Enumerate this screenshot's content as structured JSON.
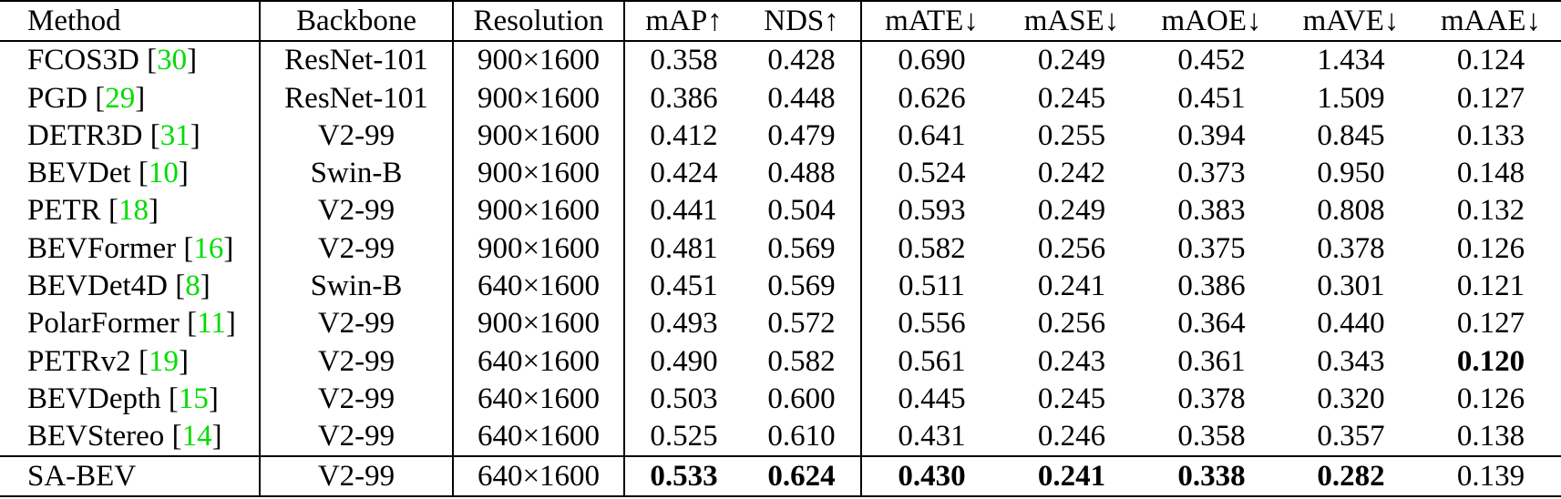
{
  "table": {
    "citation_color": "#00DC00",
    "columns": [
      {
        "id": "method",
        "label": "Method"
      },
      {
        "id": "backbone",
        "label": "Backbone"
      },
      {
        "id": "resolution",
        "label": "Resolution"
      },
      {
        "id": "map",
        "label": "mAP↑"
      },
      {
        "id": "nds",
        "label": "NDS↑"
      },
      {
        "id": "mate",
        "label": "mATE↓"
      },
      {
        "id": "mase",
        "label": "mASE↓"
      },
      {
        "id": "maoe",
        "label": "mAOE↓"
      },
      {
        "id": "mave",
        "label": "mAVE↓"
      },
      {
        "id": "maae",
        "label": "mAAE↓"
      }
    ],
    "rows": [
      {
        "method": "FCOS3D",
        "cite": "30",
        "backbone": "ResNet-101",
        "resolution": "900×1600",
        "metrics": [
          "0.358",
          "0.428",
          "0.690",
          "0.249",
          "0.452",
          "1.434",
          "0.124"
        ],
        "bold": [],
        "separator_above": false
      },
      {
        "method": "PGD",
        "cite": "29",
        "backbone": "ResNet-101",
        "resolution": "900×1600",
        "metrics": [
          "0.386",
          "0.448",
          "0.626",
          "0.245",
          "0.451",
          "1.509",
          "0.127"
        ],
        "bold": [],
        "separator_above": false
      },
      {
        "method": "DETR3D",
        "cite": "31",
        "backbone": "V2-99",
        "resolution": "900×1600",
        "metrics": [
          "0.412",
          "0.479",
          "0.641",
          "0.255",
          "0.394",
          "0.845",
          "0.133"
        ],
        "bold": [],
        "separator_above": false
      },
      {
        "method": "BEVDet",
        "cite": "10",
        "backbone": "Swin-B",
        "resolution": "900×1600",
        "metrics": [
          "0.424",
          "0.488",
          "0.524",
          "0.242",
          "0.373",
          "0.950",
          "0.148"
        ],
        "bold": [],
        "separator_above": false
      },
      {
        "method": "PETR",
        "cite": "18",
        "backbone": "V2-99",
        "resolution": "900×1600",
        "metrics": [
          "0.441",
          "0.504",
          "0.593",
          "0.249",
          "0.383",
          "0.808",
          "0.132"
        ],
        "bold": [],
        "separator_above": false
      },
      {
        "method": "BEVFormer",
        "cite": "16",
        "backbone": "V2-99",
        "resolution": "900×1600",
        "metrics": [
          "0.481",
          "0.569",
          "0.582",
          "0.256",
          "0.375",
          "0.378",
          "0.126"
        ],
        "bold": [],
        "separator_above": false
      },
      {
        "method": "BEVDet4D",
        "cite": "8",
        "backbone": "Swin-B",
        "resolution": "640×1600",
        "metrics": [
          "0.451",
          "0.569",
          "0.511",
          "0.241",
          "0.386",
          "0.301",
          "0.121"
        ],
        "bold": [],
        "separator_above": false
      },
      {
        "method": "PolarFormer",
        "cite": "11",
        "backbone": "V2-99",
        "resolution": "900×1600",
        "metrics": [
          "0.493",
          "0.572",
          "0.556",
          "0.256",
          "0.364",
          "0.440",
          "0.127"
        ],
        "bold": [],
        "separator_above": false
      },
      {
        "method": "PETRv2",
        "cite": "19",
        "backbone": "V2-99",
        "resolution": "640×1600",
        "metrics": [
          "0.490",
          "0.582",
          "0.561",
          "0.243",
          "0.361",
          "0.343",
          "0.120"
        ],
        "bold": [
          6
        ],
        "separator_above": false
      },
      {
        "method": "BEVDepth",
        "cite": "15",
        "backbone": "V2-99",
        "resolution": "640×1600",
        "metrics": [
          "0.503",
          "0.600",
          "0.445",
          "0.245",
          "0.378",
          "0.320",
          "0.126"
        ],
        "bold": [],
        "separator_above": false
      },
      {
        "method": "BEVStereo",
        "cite": "14",
        "backbone": "V2-99",
        "resolution": "640×1600",
        "metrics": [
          "0.525",
          "0.610",
          "0.431",
          "0.246",
          "0.358",
          "0.357",
          "0.138"
        ],
        "bold": [],
        "separator_above": false
      },
      {
        "method": "SA-BEV",
        "cite": null,
        "backbone": "V2-99",
        "resolution": "640×1600",
        "metrics": [
          "0.533",
          "0.624",
          "0.430",
          "0.241",
          "0.338",
          "0.282",
          "0.139"
        ],
        "bold": [
          0,
          1,
          2,
          3,
          4,
          5
        ],
        "separator_above": true
      }
    ]
  }
}
